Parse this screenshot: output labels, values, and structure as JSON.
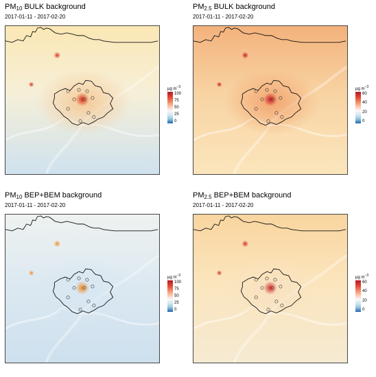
{
  "panels": [
    {
      "title_main": "PM",
      "title_sub": "10",
      "title_rest": " BULK background",
      "dates": "2017-01-11 - 2017-02-20",
      "unit_main": "μg m",
      "unit_exp": "−3",
      "ticks": [
        "100",
        "75",
        "50",
        "25",
        "0"
      ],
      "colors": {
        "bg_top": "#fbe7b4",
        "bg_mid": "#f6efd8",
        "bg_low": "#cfe2ef",
        "city": "#f6c894",
        "hot": "#d7301f"
      }
    },
    {
      "title_main": "PM",
      "title_sub": "2.5",
      "title_rest": " BULK background",
      "dates": "2017-01-11 - 2017-02-20",
      "unit_main": "μg m",
      "unit_exp": "−3",
      "ticks": [
        "60",
        "40",
        "20",
        "0"
      ],
      "colors": {
        "bg_top": "#f3b27c",
        "bg_mid": "#f8d3a2",
        "bg_low": "#fbe6bd",
        "city": "#f2a36e",
        "hot": "#c81f26"
      }
    },
    {
      "title_main": "PM",
      "title_sub": "10",
      "title_rest": " BEP+BEM background",
      "dates": "2017-01-11 - 2017-02-20",
      "unit_main": "μg m",
      "unit_exp": "−3",
      "ticks": [
        "100",
        "75",
        "50",
        "25",
        "0"
      ],
      "colors": {
        "bg_top": "#eef2f0",
        "bg_mid": "#dde9f1",
        "bg_low": "#cde0ee",
        "city": "#d7e7f2",
        "hot": "#f28c28"
      }
    },
    {
      "title_main": "PM",
      "title_sub": "2.5",
      "title_rest": " BEP+BEM background",
      "dates": "2017-01-11 - 2017-02-20",
      "unit_main": "μg m",
      "unit_exp": "−3",
      "ticks": [
        "60",
        "40",
        "20",
        "0"
      ],
      "colors": {
        "bg_top": "#f9d59f",
        "bg_mid": "#fbe5bd",
        "bg_low": "#f5ead2",
        "city": "#f8e1c0",
        "hot": "#d0302a"
      }
    }
  ]
}
